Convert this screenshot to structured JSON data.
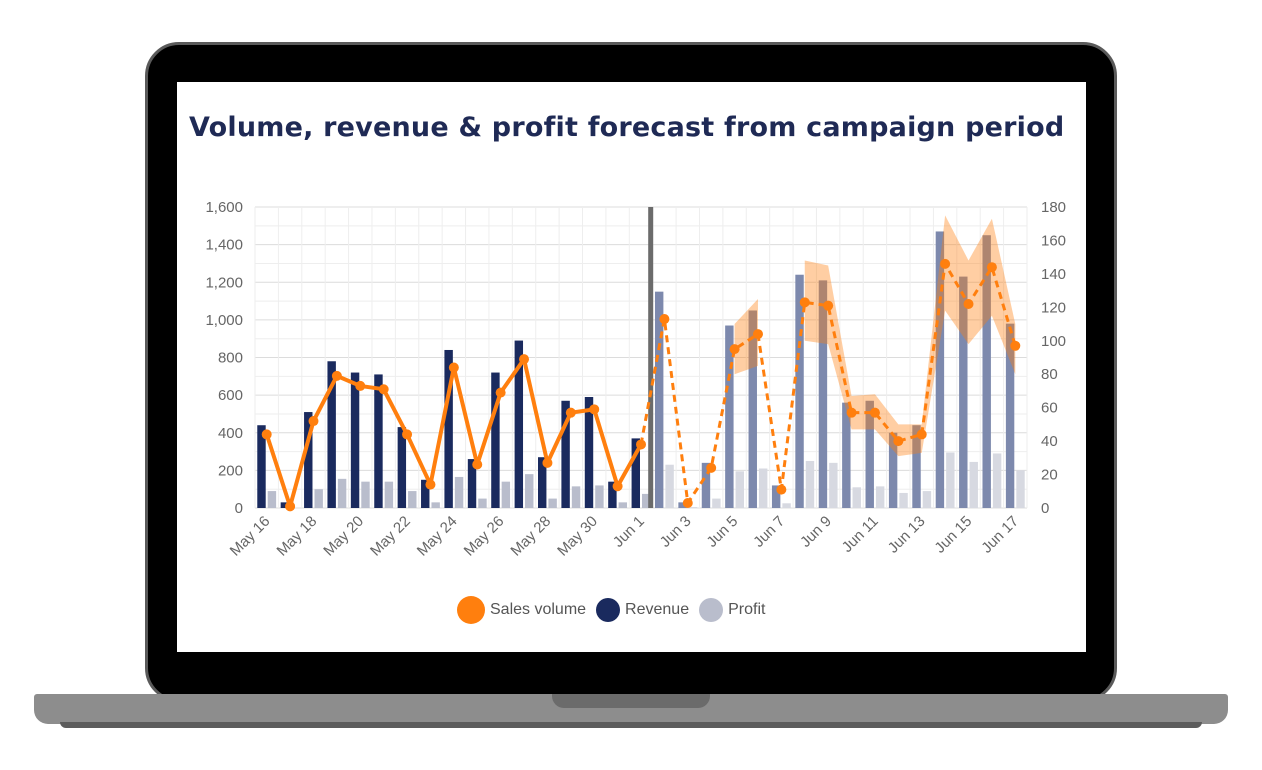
{
  "chart_data": {
    "type": "bar",
    "title": "Volume, revenue & profit forecast from campaign period",
    "categories": [
      "May 16",
      "May 17",
      "May 18",
      "May 19",
      "May 20",
      "May 21",
      "May 22",
      "May 23",
      "May 24",
      "May 25",
      "May 26",
      "May 27",
      "May 28",
      "May 29",
      "May 30",
      "May 31",
      "Jun 1",
      "Jun 2",
      "Jun 3",
      "Jun 4",
      "Jun 5",
      "Jun 6",
      "Jun 7",
      "Jun 8",
      "Jun 9",
      "Jun 10",
      "Jun 11",
      "Jun 12",
      "Jun 13",
      "Jun 14",
      "Jun 15",
      "Jun 16",
      "Jun 17"
    ],
    "x_tick_labels": [
      "May 16",
      "May 18",
      "May 20",
      "May 22",
      "May 24",
      "May 26",
      "May 28",
      "May 30",
      "Jun 1",
      "Jun 3",
      "Jun 5",
      "Jun 7",
      "Jun 9",
      "Jun 11",
      "Jun 13",
      "Jun 15",
      "Jun 17"
    ],
    "y_left_ticks": [
      "0",
      "200",
      "400",
      "600",
      "800",
      "1,000",
      "1,200",
      "1,400",
      "1,600"
    ],
    "y_right_ticks": [
      "0",
      "20",
      "40",
      "60",
      "80",
      "100",
      "120",
      "140",
      "160",
      "180"
    ],
    "ylim_left": [
      0,
      1600
    ],
    "ylim_right": [
      0,
      180
    ],
    "forecast_start": "Jun 2",
    "series": [
      {
        "name": "Revenue",
        "axis": "left",
        "color": "#1a2a5e",
        "forecast_color": "#7d89ad",
        "values": [
          440,
          30,
          510,
          780,
          720,
          710,
          430,
          150,
          840,
          260,
          720,
          890,
          270,
          570,
          590,
          140,
          370,
          1150,
          30,
          240,
          970,
          1050,
          120,
          1240,
          1210,
          560,
          570,
          400,
          440,
          1470,
          1230,
          1450,
          980
        ]
      },
      {
        "name": "Profit",
        "axis": "left",
        "color": "#b9bdcc",
        "values": [
          90,
          0,
          100,
          155,
          140,
          140,
          90,
          30,
          165,
          50,
          140,
          180,
          50,
          115,
          120,
          30,
          75,
          230,
          5,
          50,
          195,
          210,
          25,
          250,
          240,
          110,
          115,
          80,
          90,
          295,
          245,
          290,
          200
        ]
      },
      {
        "name": "Sales volume",
        "axis": "right",
        "color": "#ff7f0e",
        "values": [
          44,
          1,
          52,
          79,
          73,
          71,
          44,
          14,
          84,
          26,
          69,
          89,
          27,
          57,
          59,
          13,
          38,
          113,
          3,
          24,
          95,
          104,
          11,
          123,
          121,
          57,
          57,
          40,
          44,
          146,
          122,
          144,
          97
        ],
        "band_upper": [
          null,
          null,
          null,
          null,
          null,
          null,
          null,
          null,
          null,
          null,
          null,
          null,
          null,
          null,
          null,
          null,
          null,
          null,
          null,
          null,
          110,
          125,
          null,
          148,
          145,
          67,
          68,
          50,
          50,
          175,
          148,
          173,
          110
        ],
        "band_lower": [
          null,
          null,
          null,
          null,
          null,
          null,
          null,
          null,
          null,
          null,
          null,
          null,
          null,
          null,
          null,
          null,
          null,
          null,
          null,
          null,
          80,
          85,
          null,
          100,
          98,
          47,
          47,
          31,
          33,
          118,
          98,
          115,
          80
        ]
      }
    ]
  }
}
